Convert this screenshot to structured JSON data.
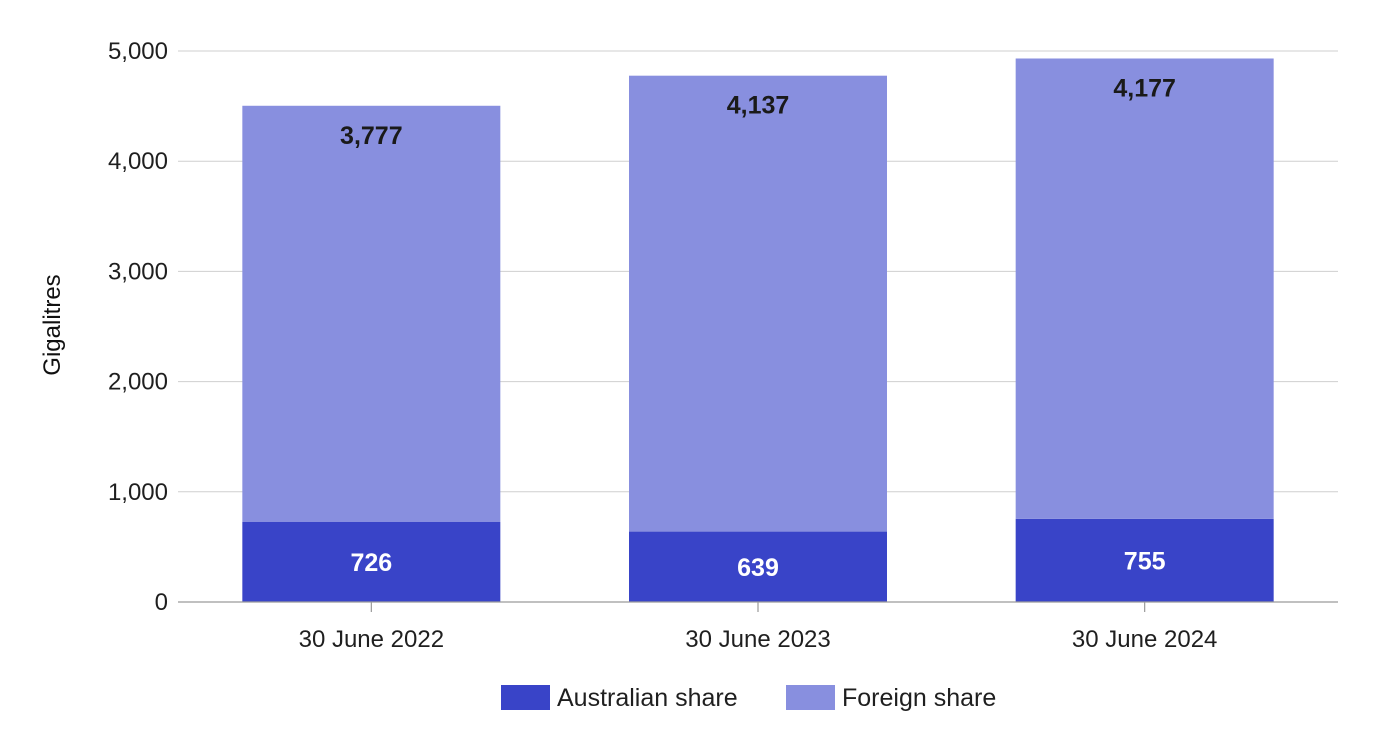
{
  "chart_data": {
    "type": "bar",
    "stacked": true,
    "categories": [
      "30 June 2022",
      "30 June 2023",
      "30 June 2024"
    ],
    "series": [
      {
        "name": "Australian share",
        "values": [
          726,
          639,
          755
        ],
        "color": "#3944c8",
        "label_color": "#ffffff"
      },
      {
        "name": "Foreign share",
        "values": [
          3777,
          4137,
          4177
        ],
        "color": "#888fdf",
        "label_color": "#1a1a1a"
      }
    ],
    "data_labels": {
      "Australian share": [
        "726",
        "639",
        "755"
      ],
      "Foreign share": [
        "3,777",
        "4,137",
        "4,177"
      ]
    },
    "ylabel": "Gigalitres",
    "xlabel": "",
    "ylim": [
      0,
      5000
    ],
    "yticks": [
      0,
      1000,
      2000,
      3000,
      4000,
      5000
    ],
    "ytick_labels": [
      "0",
      "1,000",
      "2,000",
      "3,000",
      "4,000",
      "5,000"
    ],
    "grid": true,
    "gridline_color": "#cfcfcf",
    "legend_position": "bottom-center"
  }
}
